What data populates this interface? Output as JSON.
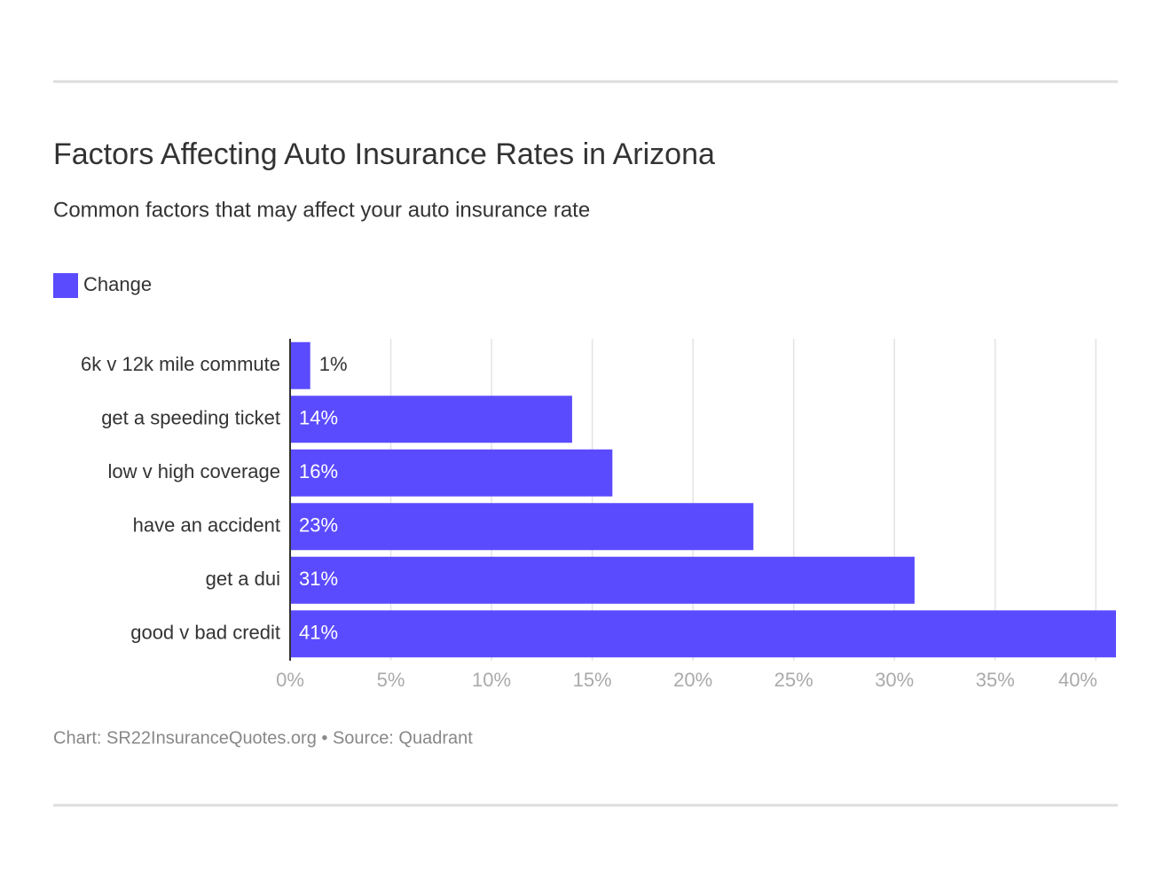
{
  "chart_data": {
    "type": "bar",
    "orientation": "horizontal",
    "title": "Factors Affecting Auto Insurance Rates in Arizona",
    "subtitle": "Common factors that may affect your auto insurance rate",
    "categories": [
      "6k v 12k mile commute",
      "get a speeding ticket",
      "low v high coverage",
      "have an accident",
      "get a dui",
      "good v bad credit"
    ],
    "series": [
      {
        "name": "Change",
        "color": "#5b4bff",
        "values": [
          1,
          14,
          16,
          23,
          31,
          41
        ],
        "value_labels": [
          "1%",
          "14%",
          "16%",
          "23%",
          "31%",
          "41%"
        ]
      }
    ],
    "xlim": [
      0,
      41
    ],
    "xticks": [
      {
        "value": 0,
        "label": "0%"
      },
      {
        "value": 5,
        "label": "5%"
      },
      {
        "value": 10,
        "label": "10%"
      },
      {
        "value": 15,
        "label": "15%"
      },
      {
        "value": 20,
        "label": "20%"
      },
      {
        "value": 25,
        "label": "25%"
      },
      {
        "value": 30,
        "label": "30%"
      },
      {
        "value": 35,
        "label": "35%"
      },
      {
        "value": 40,
        "label": "40%"
      }
    ],
    "grid": true,
    "source": "Chart: SR22InsuranceQuotes.org • Source: Quadrant"
  }
}
